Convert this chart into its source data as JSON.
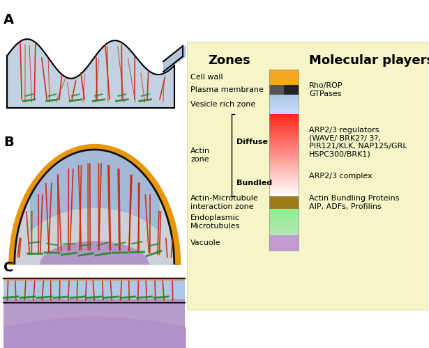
{
  "bg_color": "#fffff0",
  "legend_bg": "#f5f5dc",
  "title_zones": "Zones",
  "title_molecular": "Molecular players",
  "zones_labels": [
    "Cell wall",
    "Plasma membrane",
    "Vesicle rich zone",
    "Actin\nzone",
    "Actin-Microtubule\ninteraction zone",
    "Endoplasmic\nMicrotubules",
    "Vacuole"
  ],
  "diffuse_label": "Diffuse",
  "bundled_label": "Bundled",
  "molecular_labels": [
    [
      "Rho/ROP",
      "GTPases"
    ],
    [
      "ARP2/3 regulators",
      "(WAVE/ BRK2?/ 3?,",
      "PIR121/KLK, NAP125/GRL",
      "HSPC300/BRK1)"
    ],
    [
      "ARP2/3 complex"
    ],
    [
      "Actin Bundling Proteins",
      "AIP, ADFs, Profilins"
    ]
  ],
  "panel_labels": [
    "A",
    "B",
    "C"
  ],
  "color_cell_wall": "#F5A623",
  "color_plasma_membrane": "#555555",
  "color_vesicle_blue": "#7EB3D8",
  "color_diffuse_actin_top": "#FFFFFF",
  "color_diffuse_actin_bot": "#F08080",
  "color_bundled_actin": "#FF3030",
  "color_actin_microtubule": "#8B6914",
  "color_endoplasmic": "#90EE90",
  "color_vacuole": "#C39BD3",
  "color_actin_red": "#CC2200",
  "color_actin_green": "#228822",
  "color_cell_outline": "#111111",
  "color_cell_blue_fill": "#B0C8E8",
  "color_cell_wall_orange": "#E8960A"
}
